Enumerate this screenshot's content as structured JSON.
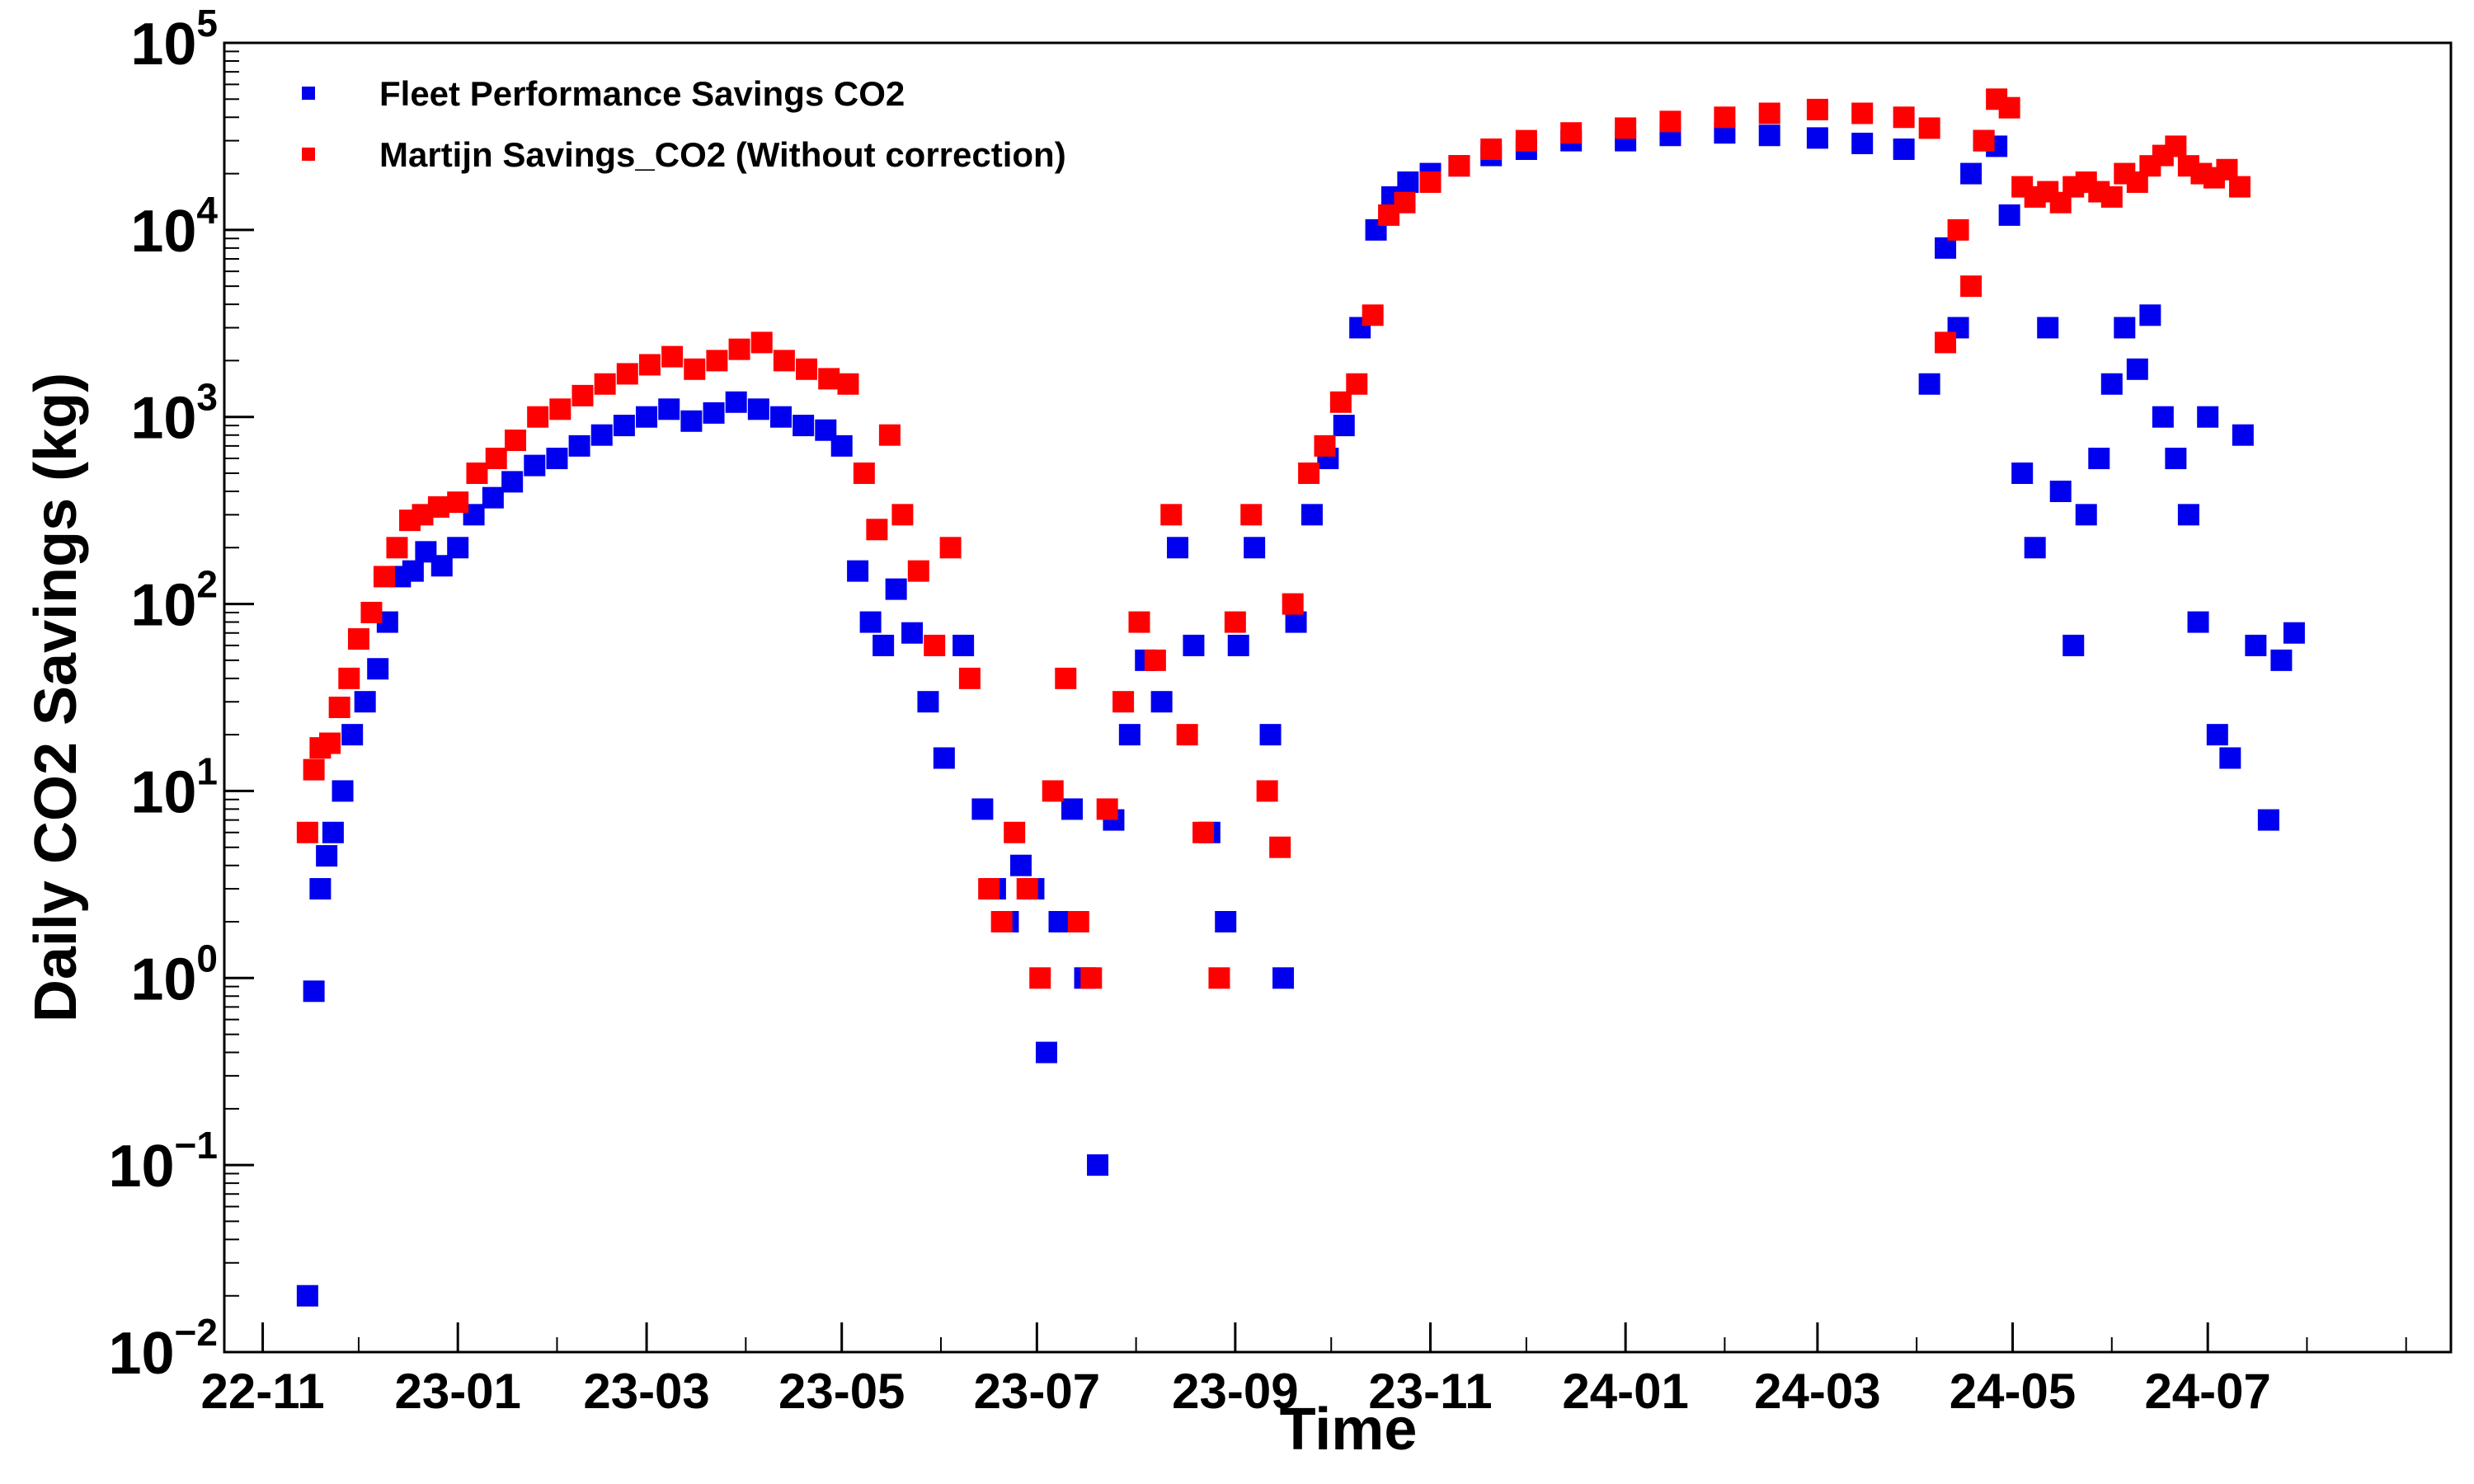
{
  "chart_data": {
    "type": "scatter",
    "xlabel": "Time",
    "ylabel": "Daily CO2 Savings (kg)",
    "yscale": "log",
    "ylim": [
      0.01,
      100000
    ],
    "xlim": [
      "2022-10-20",
      "2024-09-15"
    ],
    "grid": false,
    "legend_position": "top-left",
    "x_ticks": [
      {
        "date": "2022-11-01",
        "label": "22-11"
      },
      {
        "date": "2023-01-01",
        "label": "23-01"
      },
      {
        "date": "2023-03-01",
        "label": "23-03"
      },
      {
        "date": "2023-05-01",
        "label": "23-05"
      },
      {
        "date": "2023-07-01",
        "label": "23-07"
      },
      {
        "date": "2023-09-01",
        "label": "23-09"
      },
      {
        "date": "2023-11-01",
        "label": "23-11"
      },
      {
        "date": "2024-01-01",
        "label": "24-01"
      },
      {
        "date": "2024-03-01",
        "label": "24-03"
      },
      {
        "date": "2024-05-01",
        "label": "24-05"
      },
      {
        "date": "2024-07-01",
        "label": "24-07"
      }
    ],
    "y_ticks": [
      {
        "value": 0.01,
        "base": "10",
        "exp": "−2"
      },
      {
        "value": 0.1,
        "base": "10",
        "exp": "−1"
      },
      {
        "value": 1,
        "base": "10",
        "exp": "0"
      },
      {
        "value": 10,
        "base": "10",
        "exp": "1"
      },
      {
        "value": 100,
        "base": "10",
        "exp": "2"
      },
      {
        "value": 1000,
        "base": "10",
        "exp": "3"
      },
      {
        "value": 10000,
        "base": "10",
        "exp": "4"
      },
      {
        "value": 100000,
        "base": "10",
        "exp": "5"
      }
    ],
    "series": [
      {
        "name": "Fleet Performance Savings CO2",
        "color": "#0000ee",
        "x": [
          "2022-11-15",
          "2022-11-17",
          "2022-11-19",
          "2022-11-21",
          "2022-11-23",
          "2022-11-26",
          "2022-11-29",
          "2022-12-03",
          "2022-12-07",
          "2022-12-10",
          "2022-12-14",
          "2022-12-18",
          "2022-12-22",
          "2022-12-27",
          "2023-01-01",
          "2023-01-06",
          "2023-01-12",
          "2023-01-18",
          "2023-01-25",
          "2023-02-01",
          "2023-02-08",
          "2023-02-15",
          "2023-02-22",
          "2023-03-01",
          "2023-03-08",
          "2023-03-15",
          "2023-03-22",
          "2023-03-29",
          "2023-04-05",
          "2023-04-12",
          "2023-04-19",
          "2023-04-26",
          "2023-05-01",
          "2023-05-06",
          "2023-05-10",
          "2023-05-14",
          "2023-05-18",
          "2023-05-23",
          "2023-05-28",
          "2023-06-02",
          "2023-06-08",
          "2023-06-14",
          "2023-06-18",
          "2023-06-22",
          "2023-06-26",
          "2023-06-30",
          "2023-07-04",
          "2023-07-08",
          "2023-07-12",
          "2023-07-16",
          "2023-07-20",
          "2023-07-25",
          "2023-07-30",
          "2023-08-04",
          "2023-08-09",
          "2023-08-14",
          "2023-08-19",
          "2023-08-24",
          "2023-08-29",
          "2023-09-02",
          "2023-09-07",
          "2023-09-12",
          "2023-09-16",
          "2023-09-20",
          "2023-09-25",
          "2023-09-30",
          "2023-10-05",
          "2023-10-10",
          "2023-10-15",
          "2023-10-20",
          "2023-10-25",
          "2023-11-01",
          "2023-11-10",
          "2023-11-20",
          "2023-12-01",
          "2023-12-15",
          "2024-01-01",
          "2024-01-15",
          "2024-02-01",
          "2024-02-15",
          "2024-03-01",
          "2024-03-15",
          "2024-03-28",
          "2024-04-05",
          "2024-04-10",
          "2024-04-14",
          "2024-04-18",
          "2024-04-22",
          "2024-04-26",
          "2024-04-30",
          "2024-05-04",
          "2024-05-08",
          "2024-05-12",
          "2024-05-16",
          "2024-05-20",
          "2024-05-24",
          "2024-05-28",
          "2024-06-01",
          "2024-06-05",
          "2024-06-09",
          "2024-06-13",
          "2024-06-17",
          "2024-06-21",
          "2024-06-25",
          "2024-06-28",
          "2024-07-01",
          "2024-07-04",
          "2024-07-08",
          "2024-07-12",
          "2024-07-16",
          "2024-07-20",
          "2024-07-24",
          "2024-07-28"
        ],
        "y": [
          0.02,
          0.85,
          3,
          4.5,
          6,
          10,
          20,
          30,
          45,
          80,
          140,
          150,
          190,
          160,
          200,
          300,
          370,
          450,
          550,
          600,
          700,
          800,
          900,
          1000,
          1100,
          950,
          1050,
          1200,
          1100,
          1000,
          900,
          850,
          700,
          150,
          80,
          60,
          120,
          70,
          30,
          15,
          60,
          8,
          3,
          2,
          4,
          3,
          0.4,
          2,
          8,
          1,
          0.1,
          7,
          20,
          50,
          30,
          200,
          60,
          6,
          2,
          60,
          200,
          20,
          1,
          80,
          300,
          600,
          900,
          3000,
          10000,
          15000,
          18000,
          20000,
          22000,
          25000,
          27000,
          30000,
          30000,
          32000,
          33000,
          32000,
          31000,
          29000,
          27000,
          1500,
          8000,
          3000,
          20000,
          30000,
          28000,
          12000,
          500,
          200,
          3000,
          400,
          60,
          300,
          600,
          1500,
          3000,
          1800,
          3500,
          1000,
          600,
          300,
          80,
          1000,
          20,
          15,
          800,
          60,
          7,
          50,
          70
        ],
        "size": 26
      },
      {
        "name": "Martijn Savings_CO2 (Without correction)",
        "color": "#ff0000",
        "x": [
          "2022-11-15",
          "2022-11-17",
          "2022-11-19",
          "2022-11-22",
          "2022-11-25",
          "2022-11-28",
          "2022-12-01",
          "2022-12-05",
          "2022-12-09",
          "2022-12-13",
          "2022-12-17",
          "2022-12-21",
          "2022-12-26",
          "2023-01-01",
          "2023-01-07",
          "2023-01-13",
          "2023-01-19",
          "2023-01-26",
          "2023-02-02",
          "2023-02-09",
          "2023-02-16",
          "2023-02-23",
          "2023-03-02",
          "2023-03-09",
          "2023-03-16",
          "2023-03-23",
          "2023-03-30",
          "2023-04-06",
          "2023-04-13",
          "2023-04-20",
          "2023-04-27",
          "2023-05-03",
          "2023-05-08",
          "2023-05-12",
          "2023-05-16",
          "2023-05-20",
          "2023-05-25",
          "2023-05-30",
          "2023-06-04",
          "2023-06-10",
          "2023-06-16",
          "2023-06-20",
          "2023-06-24",
          "2023-06-28",
          "2023-07-02",
          "2023-07-06",
          "2023-07-10",
          "2023-07-14",
          "2023-07-18",
          "2023-07-23",
          "2023-07-28",
          "2023-08-02",
          "2023-08-07",
          "2023-08-12",
          "2023-08-17",
          "2023-08-22",
          "2023-08-27",
          "2023-09-01",
          "2023-09-06",
          "2023-09-11",
          "2023-09-15",
          "2023-09-19",
          "2023-09-24",
          "2023-09-29",
          "2023-10-04",
          "2023-10-09",
          "2023-10-14",
          "2023-10-19",
          "2023-10-24",
          "2023-11-01",
          "2023-11-10",
          "2023-11-20",
          "2023-12-01",
          "2023-12-15",
          "2024-01-01",
          "2024-01-15",
          "2024-02-01",
          "2024-02-15",
          "2024-03-01",
          "2024-03-15",
          "2024-03-28",
          "2024-04-05",
          "2024-04-10",
          "2024-04-14",
          "2024-04-18",
          "2024-04-22",
          "2024-04-26",
          "2024-04-30",
          "2024-05-04",
          "2024-05-08",
          "2024-05-12",
          "2024-05-16",
          "2024-05-20",
          "2024-05-24",
          "2024-05-28",
          "2024-06-01",
          "2024-06-05",
          "2024-06-09",
          "2024-06-13",
          "2024-06-17",
          "2024-06-21",
          "2024-06-25",
          "2024-06-29",
          "2024-07-03",
          "2024-07-07",
          "2024-07-11"
        ],
        "y": [
          6,
          13,
          17,
          18,
          28,
          40,
          65,
          90,
          140,
          200,
          280,
          300,
          330,
          350,
          500,
          600,
          750,
          1000,
          1100,
          1300,
          1500,
          1700,
          1900,
          2100,
          1800,
          2000,
          2300,
          2500,
          2000,
          1800,
          1600,
          1500,
          500,
          250,
          800,
          300,
          150,
          60,
          200,
          40,
          3,
          2,
          6,
          3,
          1,
          10,
          40,
          2,
          1,
          8,
          30,
          80,
          50,
          300,
          20,
          6,
          1,
          80,
          300,
          10,
          5,
          100,
          500,
          700,
          1200,
          1500,
          3500,
          12000,
          14000,
          18000,
          22000,
          27000,
          30000,
          33000,
          35000,
          38000,
          40000,
          42000,
          44000,
          42000,
          40000,
          35000,
          2500,
          10000,
          5000,
          30000,
          50000,
          45000,
          17000,
          15000,
          16000,
          14000,
          17000,
          18000,
          16000,
          15000,
          20000,
          18000,
          22000,
          25000,
          28000,
          22000,
          20000,
          19000,
          21000,
          17000
        ],
        "size": 26
      }
    ]
  }
}
